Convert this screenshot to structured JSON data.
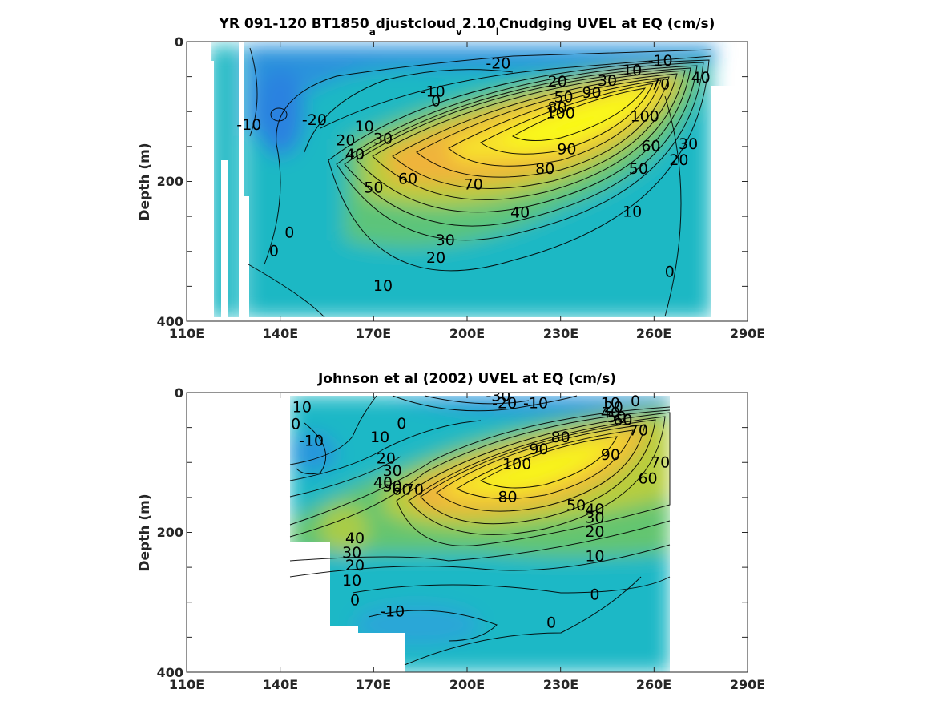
{
  "chart_data": [
    {
      "type": "heatmap",
      "title_parts": [
        {
          "text": "YR 091-120 BT1850",
          "sub": false
        },
        {
          "text": "a",
          "sub": true
        },
        {
          "text": "djustcloud",
          "sub": false
        },
        {
          "text": "v",
          "sub": true
        },
        {
          "text": "2.10",
          "sub": false
        },
        {
          "text": "l",
          "sub": true
        },
        {
          "text": "Cnudging UVEL at EQ (cm/s)",
          "sub": false
        }
      ],
      "xlabel": "",
      "ylabel": "Depth (m)",
      "xlim": [
        110,
        290
      ],
      "ylim": [
        0,
        400
      ],
      "xticks": [
        "110E",
        "140E",
        "170E",
        "200E",
        "230E",
        "260E",
        "290E"
      ],
      "yticks": [
        "0",
        "200",
        "400"
      ],
      "core": {
        "lon": 222,
        "depth": 140,
        "value": 105
      },
      "contour_levels": [
        -20,
        -10,
        0,
        10,
        20,
        30,
        40,
        50,
        60,
        70,
        80,
        90,
        100
      ],
      "contour_labels": [
        {
          "text": "-20",
          "lon": 210,
          "depth": 32
        },
        {
          "text": "-10",
          "lon": 262,
          "depth": 28
        },
        {
          "text": "10",
          "lon": 253,
          "depth": 42
        },
        {
          "text": "20",
          "lon": 229,
          "depth": 58
        },
        {
          "text": "30",
          "lon": 245,
          "depth": 57
        },
        {
          "text": "70",
          "lon": 262,
          "depth": 62
        },
        {
          "text": "40",
          "lon": 275,
          "depth": 52
        },
        {
          "text": "-10",
          "lon": 189,
          "depth": 72
        },
        {
          "text": "0",
          "lon": 190,
          "depth": 86
        },
        {
          "text": "50",
          "lon": 231,
          "depth": 80
        },
        {
          "text": "90",
          "lon": 240,
          "depth": 74
        },
        {
          "text": "80",
          "lon": 229,
          "depth": 95
        },
        {
          "text": "100",
          "lon": 230,
          "depth": 103
        },
        {
          "text": "100",
          "lon": 257,
          "depth": 108
        },
        {
          "text": "-10",
          "lon": 130,
          "depth": 120
        },
        {
          "text": "-20",
          "lon": 151,
          "depth": 113
        },
        {
          "text": "10",
          "lon": 167,
          "depth": 122
        },
        {
          "text": "20",
          "lon": 161,
          "depth": 142
        },
        {
          "text": "30",
          "lon": 173,
          "depth": 140
        },
        {
          "text": "40",
          "lon": 164,
          "depth": 162
        },
        {
          "text": "90",
          "lon": 232,
          "depth": 155
        },
        {
          "text": "60",
          "lon": 259,
          "depth": 150
        },
        {
          "text": "30",
          "lon": 271,
          "depth": 147
        },
        {
          "text": "20",
          "lon": 268,
          "depth": 170
        },
        {
          "text": "80",
          "lon": 225,
          "depth": 183
        },
        {
          "text": "50",
          "lon": 255,
          "depth": 183
        },
        {
          "text": "60",
          "lon": 181,
          "depth": 197
        },
        {
          "text": "70",
          "lon": 202,
          "depth": 205
        },
        {
          "text": "50",
          "lon": 170,
          "depth": 210
        },
        {
          "text": "40",
          "lon": 217,
          "depth": 245
        },
        {
          "text": "10",
          "lon": 253,
          "depth": 244
        },
        {
          "text": "0",
          "lon": 143,
          "depth": 274
        },
        {
          "text": "30",
          "lon": 193,
          "depth": 285
        },
        {
          "text": "0",
          "lon": 138,
          "depth": 300
        },
        {
          "text": "20",
          "lon": 190,
          "depth": 310
        },
        {
          "text": "0",
          "lon": 265,
          "depth": 330
        },
        {
          "text": "10",
          "lon": 173,
          "depth": 350
        }
      ]
    },
    {
      "type": "heatmap",
      "title_parts": [
        {
          "text": "Johnson et al (2002) UVEL at EQ (cm/s)",
          "sub": false
        }
      ],
      "xlabel": "",
      "ylabel": "Depth (m)",
      "xlim": [
        110,
        290
      ],
      "ylim": [
        0,
        400
      ],
      "xticks": [
        "110E",
        "140E",
        "170E",
        "200E",
        "230E",
        "260E",
        "290E"
      ],
      "yticks": [
        "0",
        "200",
        "400"
      ],
      "core": {
        "lon": 228,
        "depth": 112,
        "value": 100
      },
      "contour_levels": [
        -30,
        -20,
        -10,
        0,
        10,
        20,
        30,
        40,
        50,
        60,
        70,
        80,
        90,
        100
      ],
      "contour_labels": [
        {
          "text": "-30",
          "lon": 210,
          "depth": 6
        },
        {
          "text": "-20",
          "lon": 212,
          "depth": 16
        },
        {
          "text": "-10",
          "lon": 222,
          "depth": 16
        },
        {
          "text": "10",
          "lon": 246,
          "depth": 16
        },
        {
          "text": "0",
          "lon": 254,
          "depth": 13
        },
        {
          "text": "10",
          "lon": 147,
          "depth": 22
        },
        {
          "text": "20",
          "lon": 247,
          "depth": 22
        },
        {
          "text": "40",
          "lon": 246,
          "depth": 30
        },
        {
          "text": "50",
          "lon": 248,
          "depth": 36
        },
        {
          "text": "60",
          "lon": 250,
          "depth": 40
        },
        {
          "text": "0",
          "lon": 145,
          "depth": 46
        },
        {
          "text": "0",
          "lon": 179,
          "depth": 45
        },
        {
          "text": "70",
          "lon": 255,
          "depth": 55
        },
        {
          "text": "-10",
          "lon": 150,
          "depth": 70
        },
        {
          "text": "10",
          "lon": 172,
          "depth": 65
        },
        {
          "text": "80",
          "lon": 230,
          "depth": 65
        },
        {
          "text": "90",
          "lon": 223,
          "depth": 82
        },
        {
          "text": "100",
          "lon": 216,
          "depth": 103
        },
        {
          "text": "90",
          "lon": 246,
          "depth": 90
        },
        {
          "text": "20",
          "lon": 174,
          "depth": 95
        },
        {
          "text": "70",
          "lon": 262,
          "depth": 101
        },
        {
          "text": "30",
          "lon": 176,
          "depth": 113
        },
        {
          "text": "60",
          "lon": 258,
          "depth": 124
        },
        {
          "text": "40",
          "lon": 173,
          "depth": 130
        },
        {
          "text": "50",
          "lon": 176,
          "depth": 135
        },
        {
          "text": "60",
          "lon": 179,
          "depth": 140
        },
        {
          "text": "70",
          "lon": 183,
          "depth": 140
        },
        {
          "text": "80",
          "lon": 213,
          "depth": 150
        },
        {
          "text": "50",
          "lon": 235,
          "depth": 162
        },
        {
          "text": "40",
          "lon": 241,
          "depth": 168
        },
        {
          "text": "30",
          "lon": 241,
          "depth": 180
        },
        {
          "text": "20",
          "lon": 241,
          "depth": 200
        },
        {
          "text": "40",
          "lon": 164,
          "depth": 209
        },
        {
          "text": "30",
          "lon": 163,
          "depth": 230
        },
        {
          "text": "10",
          "lon": 241,
          "depth": 235
        },
        {
          "text": "20",
          "lon": 164,
          "depth": 248
        },
        {
          "text": "10",
          "lon": 163,
          "depth": 270
        },
        {
          "text": "0",
          "lon": 241,
          "depth": 290
        },
        {
          "text": "0",
          "lon": 164,
          "depth": 298
        },
        {
          "text": "-10",
          "lon": 176,
          "depth": 314
        },
        {
          "text": "0",
          "lon": 227,
          "depth": 330
        }
      ]
    }
  ]
}
